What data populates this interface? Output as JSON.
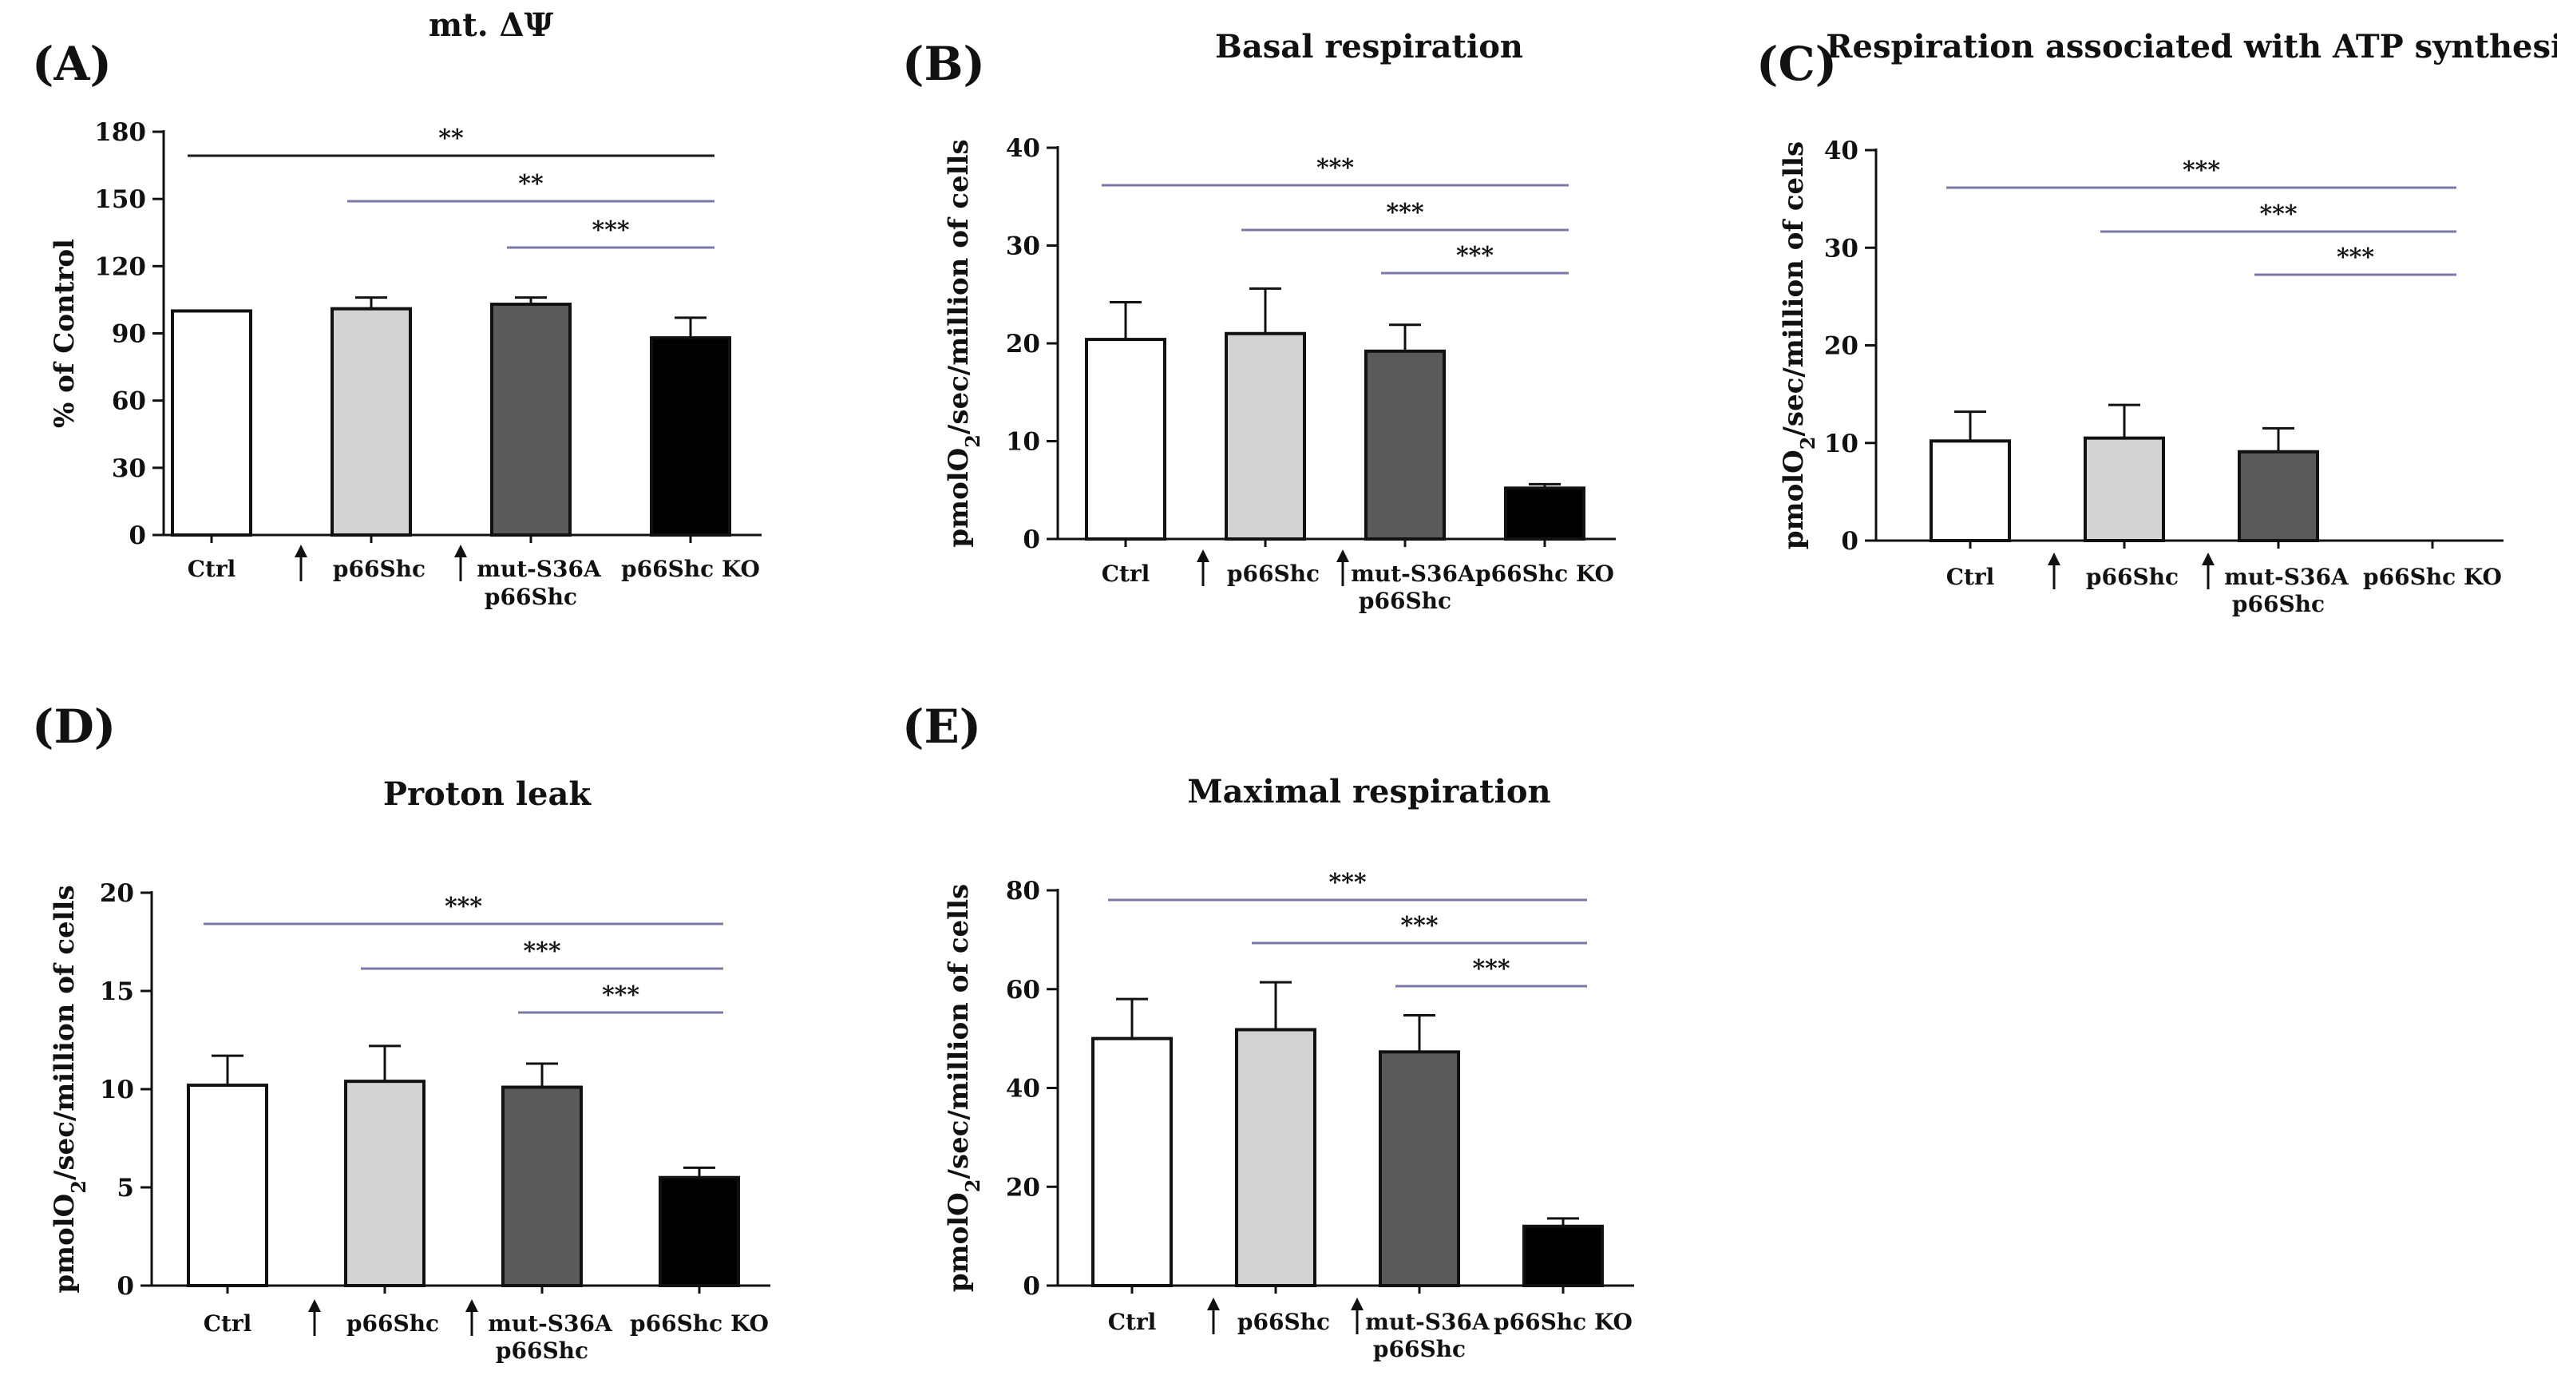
{
  "chart_data": [
    {
      "panel": "(A)",
      "type": "bar",
      "title": "mt. ΔΨ",
      "ylabel": "% of Control",
      "ylim": [
        0,
        180
      ],
      "yticks": [
        0,
        30,
        60,
        90,
        120,
        150,
        180
      ],
      "categories": [
        {
          "label": [
            "Ctrl"
          ],
          "arrow": false
        },
        {
          "label": [
            "p66Shc"
          ],
          "arrow": true
        },
        {
          "label": [
            "mut-S36A",
            "p66Shc"
          ],
          "arrow": true
        },
        {
          "label": [
            "p66Shc KO"
          ],
          "arrow": false
        }
      ],
      "values": [
        100,
        101,
        103,
        88
      ],
      "errors": [
        0,
        5,
        3,
        9
      ],
      "bar_colors": [
        "#ffffff",
        "#d3d3d3",
        "#5a5a5a",
        "#000000"
      ],
      "significance": [
        {
          "from": 0,
          "to": 3,
          "label": "**",
          "color": "#1a1a1a"
        },
        {
          "from": 1,
          "to": 3,
          "label": "**",
          "color": "#7a78a6"
        },
        {
          "from": 2,
          "to": 3,
          "label": "***",
          "color": "#7a78a6"
        }
      ]
    },
    {
      "panel": "(B)",
      "type": "bar",
      "title": "Basal respiration",
      "ylabel": "pmolO2/sec/million of cells",
      "ylim": [
        0,
        40
      ],
      "yticks": [
        0,
        10,
        20,
        30,
        40
      ],
      "categories": [
        {
          "label": [
            "Ctrl"
          ],
          "arrow": false
        },
        {
          "label": [
            "p66Shc"
          ],
          "arrow": true
        },
        {
          "label": [
            "mut-S36A",
            "p66Shc"
          ],
          "arrow": true
        },
        {
          "label": [
            "p66Shc KO"
          ],
          "arrow": false
        }
      ],
      "values": [
        20.4,
        21,
        19.2,
        5.2
      ],
      "errors": [
        3.8,
        4.6,
        2.7,
        0.4
      ],
      "bar_colors": [
        "#ffffff",
        "#d3d3d3",
        "#5a5a5a",
        "#000000"
      ],
      "significance": [
        {
          "from": 0,
          "to": 3,
          "label": "***",
          "color": "#7a78a6"
        },
        {
          "from": 1,
          "to": 3,
          "label": "***",
          "color": "#7a78a6"
        },
        {
          "from": 2,
          "to": 3,
          "label": "***",
          "color": "#7a78a6"
        }
      ]
    },
    {
      "panel": "(C)",
      "type": "bar",
      "title": "Respiration associated with ATP synthesis",
      "ylabel": "pmolO2/sec/million of cells",
      "ylim": [
        0,
        40
      ],
      "yticks": [
        0,
        10,
        20,
        30,
        40
      ],
      "categories": [
        {
          "label": [
            "Ctrl"
          ],
          "arrow": false
        },
        {
          "label": [
            "p66Shc"
          ],
          "arrow": true
        },
        {
          "label": [
            "mut-S36A",
            "p66Shc"
          ],
          "arrow": true
        },
        {
          "label": [
            "p66Shc KO"
          ],
          "arrow": false
        }
      ],
      "values": [
        10.2,
        10.5,
        9.1,
        0
      ],
      "errors": [
        3,
        3.4,
        2.4,
        0
      ],
      "bar_colors": [
        "#ffffff",
        "#d3d3d3",
        "#5a5a5a",
        "#000000"
      ],
      "significance": [
        {
          "from": 0,
          "to": 3,
          "label": "***",
          "color": "#7a78a6"
        },
        {
          "from": 1,
          "to": 3,
          "label": "***",
          "color": "#7a78a6"
        },
        {
          "from": 2,
          "to": 3,
          "label": "***",
          "color": "#7a78a6"
        }
      ]
    },
    {
      "panel": "(D)",
      "type": "bar",
      "title": "Proton leak",
      "ylabel": "pmolO2/sec/million of cells",
      "ylim": [
        0,
        20
      ],
      "yticks": [
        0,
        5,
        10,
        15,
        20
      ],
      "categories": [
        {
          "label": [
            "Ctrl"
          ],
          "arrow": false
        },
        {
          "label": [
            "p66Shc"
          ],
          "arrow": true
        },
        {
          "label": [
            "mut-S36A",
            "p66Shc"
          ],
          "arrow": true
        },
        {
          "label": [
            "p66Shc KO"
          ],
          "arrow": false
        }
      ],
      "values": [
        10.2,
        10.4,
        10.1,
        5.5
      ],
      "errors": [
        1.5,
        1.8,
        1.2,
        0.5
      ],
      "bar_colors": [
        "#ffffff",
        "#d3d3d3",
        "#5a5a5a",
        "#000000"
      ],
      "significance": [
        {
          "from": 0,
          "to": 3,
          "label": "***",
          "color": "#7a78a6"
        },
        {
          "from": 1,
          "to": 3,
          "label": "***",
          "color": "#7a78a6"
        },
        {
          "from": 2,
          "to": 3,
          "label": "***",
          "color": "#7a78a6"
        }
      ]
    },
    {
      "panel": "(E)",
      "type": "bar",
      "title": "Maximal respiration",
      "ylabel": "pmolO2/sec/million of cells",
      "ylim": [
        0,
        80
      ],
      "yticks": [
        0,
        20,
        40,
        60,
        80
      ],
      "categories": [
        {
          "label": [
            "Ctrl"
          ],
          "arrow": false
        },
        {
          "label": [
            "p66Shc"
          ],
          "arrow": true
        },
        {
          "label": [
            "mut-S36A",
            "p66Shc"
          ],
          "arrow": true
        },
        {
          "label": [
            "p66Shc KO"
          ],
          "arrow": false
        }
      ],
      "values": [
        50,
        51.8,
        47.3,
        12
      ],
      "errors": [
        8,
        9.6,
        7.4,
        1.6
      ],
      "bar_colors": [
        "#ffffff",
        "#d3d3d3",
        "#5a5a5a",
        "#000000"
      ],
      "significance": [
        {
          "from": 0,
          "to": 3,
          "label": "***",
          "color": "#7a78a6"
        },
        {
          "from": 1,
          "to": 3,
          "label": "***",
          "color": "#7a78a6"
        },
        {
          "from": 2,
          "to": 3,
          "label": "***",
          "color": "#7a78a6"
        }
      ]
    }
  ]
}
